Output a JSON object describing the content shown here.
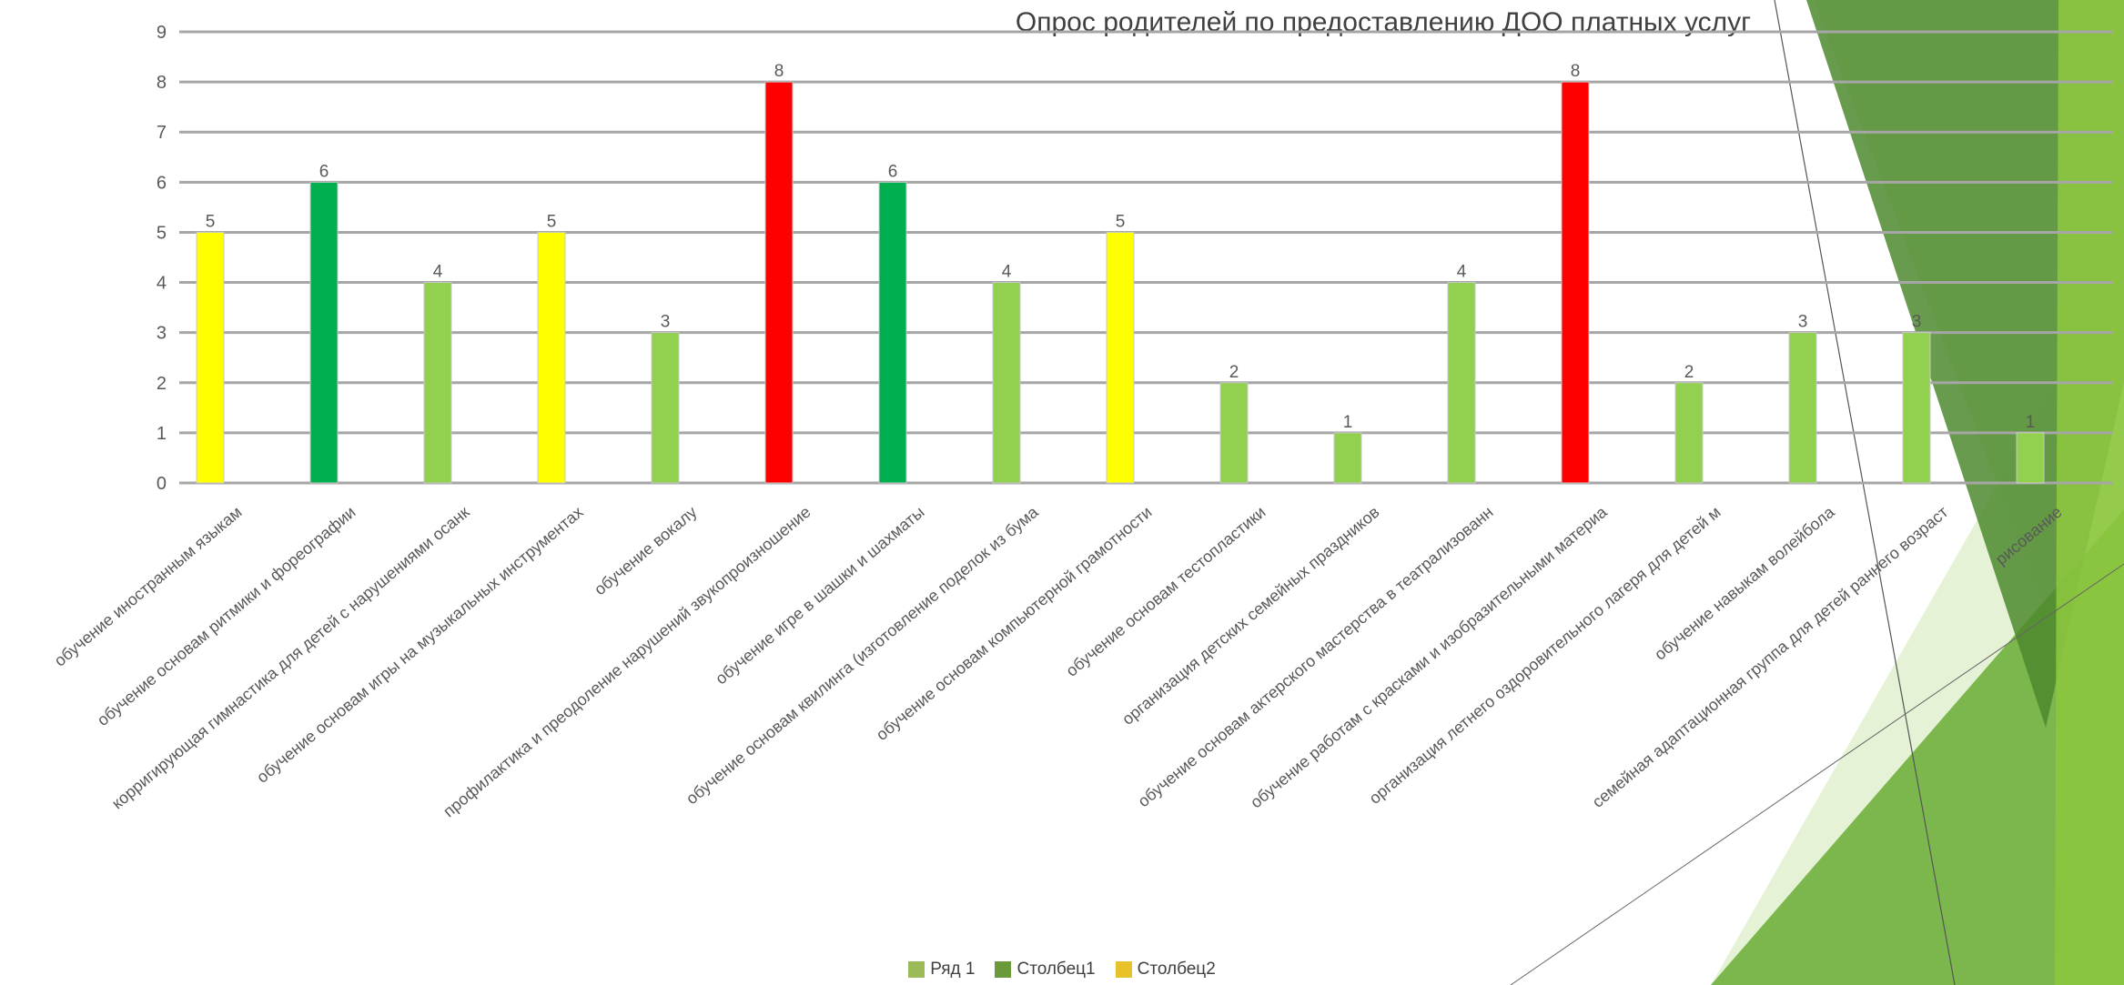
{
  "chart_data": {
    "type": "bar",
    "title": "Опрос родителей по предоставлению ДОО платных услуг",
    "xlabel": "",
    "ylabel": "",
    "ylim": [
      0,
      9
    ],
    "yticks": [
      0,
      1,
      2,
      3,
      4,
      5,
      6,
      7,
      8,
      9
    ],
    "grid": true,
    "legend_position": "bottom",
    "categories": [
      "обучение иностранным языкам",
      "обучение основам ритмики и фореографии",
      "корригирующая гимнастика для детей с нарушениями осанк",
      "обучение основам игры на музыкальных инструментах",
      "обучение вокалу",
      "профилактика и преодоление нарушений звукопроизношение",
      "обучение игре в шашки и шахматы",
      "обучение основам квилинга (изготовление поделок из бума",
      "обучение основам компьютерной грамотности",
      "обучение основам тестопластики",
      "организация детских семейных праздников",
      "обучение основам актерского мастерства в театрализованн",
      "обучение работам с красками и изобразительными материа",
      "организация летнего оздоровительного лагеря для детей м",
      "обучение навыкам волейбола",
      "семейная адаптационная группа для детей раннего возраст",
      "рисование"
    ],
    "values": [
      5,
      6,
      4,
      5,
      3,
      8,
      6,
      4,
      5,
      2,
      1,
      4,
      8,
      2,
      3,
      3,
      1
    ],
    "bar_colors": [
      "#ffff00",
      "#00b050",
      "#92d050",
      "#ffff00",
      "#92d050",
      "#ff0000",
      "#00b050",
      "#92d050",
      "#ffff00",
      "#92d050",
      "#92d050",
      "#92d050",
      "#ff0000",
      "#92d050",
      "#92d050",
      "#92d050",
      "#92d050"
    ],
    "series": [
      {
        "name": "Ряд 1",
        "color": "#9bbb59"
      },
      {
        "name": "Столбец1",
        "color": "#6a9a3a"
      },
      {
        "name": "Столбец2",
        "color": "#e8c22a"
      }
    ]
  }
}
